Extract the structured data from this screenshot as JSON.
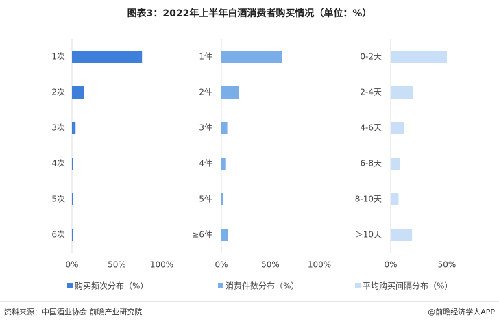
{
  "title": "图表3：2022年上半年白酒消费者购买情况（单位：%）",
  "source": "资料来源：中国酒业协会 前瞻产业研究院",
  "credit": "@前瞻经济学人APP",
  "chart_data": [
    {
      "type": "bar",
      "orientation": "horizontal",
      "categories": [
        "1次",
        "2次",
        "3次",
        "4次",
        "5次",
        "6次"
      ],
      "series": [
        {
          "name": "购买频次分布（%）",
          "color": "#3d7fdb",
          "values": [
            78,
            13,
            4,
            1.5,
            1,
            1
          ]
        }
      ],
      "xlim": [
        0,
        100
      ],
      "xticks": [
        {
          "value": 0,
          "label": "0%"
        },
        {
          "value": 50,
          "label": "50%"
        },
        {
          "value": 100,
          "label": "100%"
        }
      ]
    },
    {
      "type": "bar",
      "orientation": "horizontal",
      "categories": [
        "1件",
        "2件",
        "3件",
        "4件",
        "5件",
        "≥6件"
      ],
      "series": [
        {
          "name": "消费件数分布（%）",
          "color": "#7aaee8",
          "values": [
            62,
            18,
            6,
            4,
            2,
            7
          ]
        }
      ],
      "xlim": [
        0,
        100
      ],
      "xticks": [
        {
          "value": 0,
          "label": "0%"
        },
        {
          "value": 50,
          "label": "50%"
        },
        {
          "value": 100,
          "label": "100%"
        }
      ]
    },
    {
      "type": "bar",
      "orientation": "horizontal",
      "categories": [
        "0-2天",
        "2-4天",
        "4-6天",
        "6-8天",
        "8-10天",
        "＞10天"
      ],
      "series": [
        {
          "name": "平均购买间隔分布（%）",
          "color": "#c9dff7",
          "values": [
            50,
            20,
            12,
            8,
            7,
            19
          ]
        }
      ],
      "xlim": [
        0,
        75
      ],
      "xticks": [
        {
          "value": 0,
          "label": "0%"
        },
        {
          "value": 50,
          "label": "50%"
        }
      ]
    }
  ]
}
